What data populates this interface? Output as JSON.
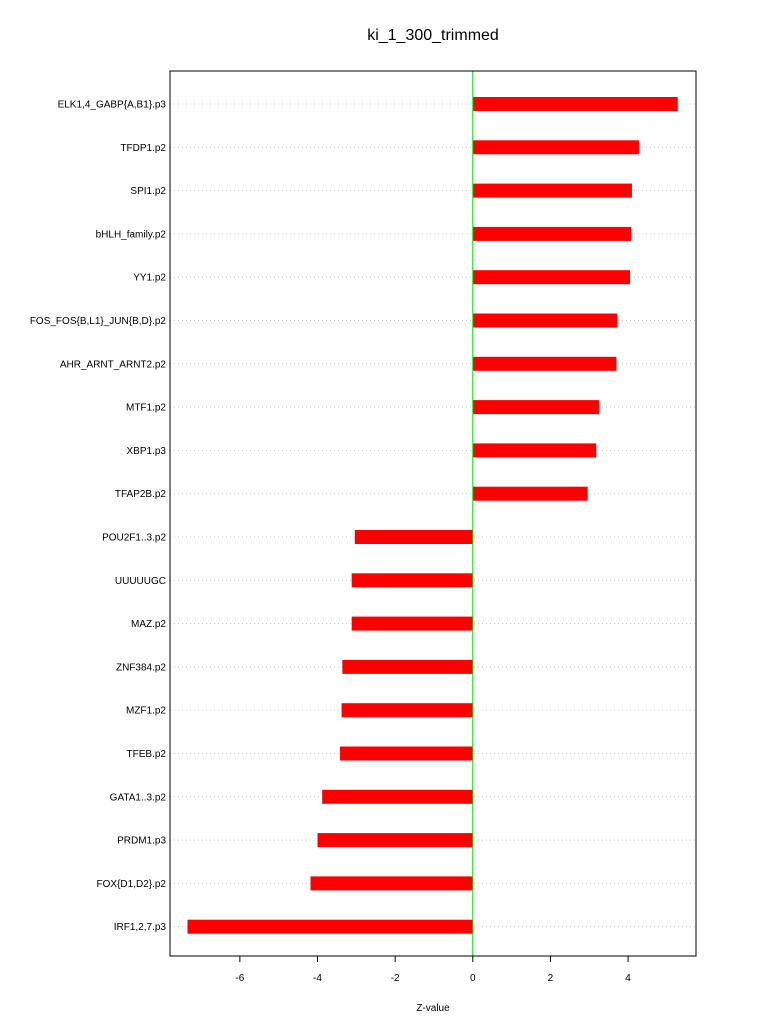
{
  "chart_data": {
    "type": "bar",
    "orientation": "horizontal",
    "title": "ki_1_300_trimmed",
    "xlabel": "Z-value",
    "ylabel": "",
    "xlim": [
      -7.8,
      5.75
    ],
    "xticks": [
      -6,
      -4,
      -2,
      0,
      2,
      4
    ],
    "grid": true,
    "legend": "none",
    "bar_color": "#ff0000",
    "zero_line_color": "#00dd00",
    "categories": [
      "ELK1,4_GABP{A,B1}.p3",
      "TFDP1.p2",
      "SPI1.p2",
      "bHLH_family.p2",
      "YY1.p2",
      "FOS_FOS{B,L1}_JUN{B,D}.p2",
      "AHR_ARNT_ARNT2.p2",
      "MTF1.p2",
      "XBP1.p3",
      "TFAP2B.p2",
      "POU2F1..3.p2",
      "UUUUUGC",
      "MAZ.p2",
      "ZNF384.p2",
      "MZF1.p2",
      "TFEB.p2",
      "GATA1..3.p2",
      "PRDM1.p3",
      "FOX{D1,D2}.p2",
      "IRF1,2,7.p3"
    ],
    "values": [
      5.28,
      4.28,
      4.1,
      4.08,
      4.05,
      3.72,
      3.7,
      3.25,
      3.18,
      2.96,
      -3.04,
      -3.12,
      -3.12,
      -3.36,
      -3.38,
      -3.42,
      -3.88,
      -4.0,
      -4.18,
      -7.35
    ]
  }
}
